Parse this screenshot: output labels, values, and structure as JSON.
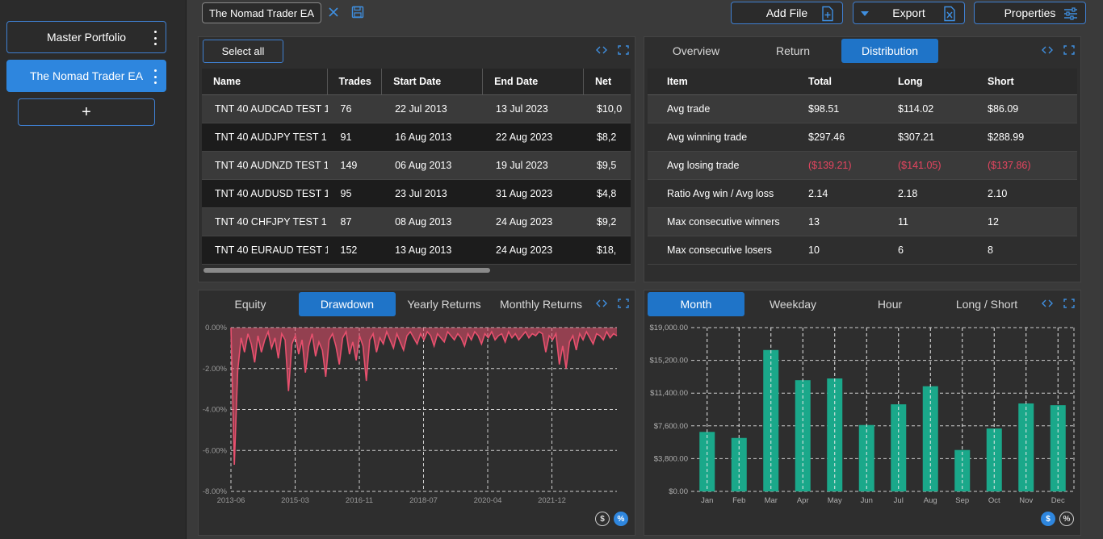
{
  "sidebar": {
    "portfolios": [
      {
        "label": "Master Portfolio",
        "active": false
      },
      {
        "label": "The Nomad Trader EA",
        "active": true
      }
    ],
    "add_label": "+"
  },
  "topbar": {
    "file_name": "The Nomad Trader EA",
    "add_file_label": "Add File",
    "export_label": "Export",
    "properties_label": "Properties"
  },
  "trades_table": {
    "select_all_label": "Select all",
    "columns": [
      "Name",
      "Trades",
      "Start Date",
      "End Date",
      "Net"
    ],
    "rows": [
      [
        "TNT 40 AUDCAD TEST 1",
        "76",
        "22 Jul 2013",
        "13 Jul 2023",
        "$10,0"
      ],
      [
        "TNT 40 AUDJPY TEST 1",
        "91",
        "16 Aug 2013",
        "22 Aug 2023",
        "$8,2"
      ],
      [
        "TNT 40 AUDNZD TEST 1",
        "149",
        "06 Aug 2013",
        "19 Jul 2023",
        "$9,5"
      ],
      [
        "TNT 40 AUDUSD TEST 1",
        "95",
        "23 Jul 2013",
        "31 Aug 2023",
        "$4,8"
      ],
      [
        "TNT 40 CHFJPY TEST 1",
        "87",
        "08 Aug 2013",
        "24 Aug 2023",
        "$9,2"
      ],
      [
        "TNT 40 EURAUD TEST 1",
        "152",
        "13 Aug 2013",
        "24 Aug 2023",
        "$18,"
      ]
    ]
  },
  "distribution": {
    "tabs": [
      "Overview",
      "Return",
      "Distribution"
    ],
    "active_tab": "Distribution",
    "columns": [
      "Item",
      "Total",
      "Long",
      "Short"
    ],
    "rows": [
      {
        "item": "Avg trade",
        "total": "$98.51",
        "long": "$114.02",
        "short": "$86.09",
        "neg": false
      },
      {
        "item": "Avg winning trade",
        "total": "$297.46",
        "long": "$307.21",
        "short": "$288.99",
        "neg": false
      },
      {
        "item": "Avg losing trade",
        "total": "($139.21)",
        "long": "($141.05)",
        "short": "($137.86)",
        "neg": true
      },
      {
        "item": "Ratio Avg win / Avg loss",
        "total": "2.14",
        "long": "2.18",
        "short": "2.10",
        "neg": false
      },
      {
        "item": "Max consecutive winners",
        "total": "13",
        "long": "11",
        "short": "12",
        "neg": false
      },
      {
        "item": "Max consecutive losers",
        "total": "10",
        "long": "6",
        "short": "8",
        "neg": false
      }
    ]
  },
  "drawdown_panel": {
    "tabs": [
      "Equity",
      "Drawdown",
      "Yearly Returns",
      "Monthly Returns"
    ],
    "active_tab": "Drawdown",
    "toggle_dollar": "$",
    "toggle_percent": "%"
  },
  "month_panel": {
    "tabs": [
      "Month",
      "Weekday",
      "Hour",
      "Long / Short"
    ],
    "active_tab": "Month",
    "toggle_dollar": "$",
    "toggle_percent": "%"
  },
  "chart_data": [
    {
      "type": "area",
      "title": "",
      "x_ticks": [
        "2013-06",
        "2015-03",
        "2016-11",
        "2018-07",
        "2020-04",
        "2021-12"
      ],
      "y_ticks": [
        "0.00%",
        "-2.00%",
        "-4.00%",
        "-6.00%",
        "-8.00%"
      ],
      "ylim": [
        -8,
        0
      ],
      "grid": true,
      "color": "#e8506e",
      "series": [
        {
          "values": [
            0,
            -6.7,
            -2.1,
            -0.5,
            -1.2,
            -0.3,
            -0.8,
            -1.7,
            -0.4,
            -1.2,
            -0.6,
            -0.2,
            -1.0,
            -0.5,
            -1.5,
            -0.3,
            -0.6,
            -3.1,
            -0.8,
            -0.4,
            -1.3,
            -0.6,
            -2.2,
            -0.9,
            -0.3,
            -1.4,
            -0.7,
            -1.1,
            -2.4,
            -0.6,
            -0.3,
            -0.9,
            -1.8,
            -0.5,
            -0.2,
            -1.3,
            -0.7,
            -1.6,
            -0.4,
            -0.9,
            -2.6,
            -0.6,
            -0.3,
            -1.2,
            -0.5,
            -0.8,
            -0.2,
            -0.6,
            -1.0,
            -0.3,
            -0.7,
            -1.1,
            -0.4,
            -0.2,
            -0.5,
            -0.8,
            -0.3,
            -0.6,
            -0.2,
            -0.4,
            -0.9,
            -0.3,
            -0.5,
            -0.7,
            -0.2,
            -0.4,
            -0.6,
            -0.3,
            -0.5,
            -0.9,
            -0.3,
            -0.6,
            -0.2,
            -0.4,
            -0.8,
            -0.3,
            -0.5,
            -0.2,
            -0.6,
            -0.4,
            -0.3,
            -0.7,
            -0.2,
            -0.5,
            -0.3,
            -0.6,
            -0.4,
            -0.2,
            -0.5,
            -0.3,
            -0.4,
            -0.2,
            -0.3,
            -1.2,
            -0.4,
            -0.6,
            -0.3,
            -1.8,
            -0.9,
            -2.0,
            -0.7,
            -0.4,
            -1.1,
            -0.3,
            -0.6,
            -0.2,
            -0.5,
            -0.8,
            -0.3,
            -0.4,
            -0.6,
            -0.2,
            -0.5,
            -0.3,
            -0.4
          ]
        }
      ]
    },
    {
      "type": "bar",
      "title": "",
      "categories": [
        "Jan",
        "Feb",
        "Mar",
        "Apr",
        "May",
        "Jun",
        "Jul",
        "Aug",
        "Sep",
        "Oct",
        "Nov",
        "Dec"
      ],
      "values": [
        6900,
        6200,
        16400,
        12900,
        13100,
        7700,
        10100,
        12200,
        4800,
        7300,
        10200,
        10000
      ],
      "y_ticks": [
        "$0.00",
        "$3,800.00",
        "$7,600.00",
        "$11,400.00",
        "$15,200.00",
        "$19,000.00"
      ],
      "ylim": [
        0,
        19000
      ],
      "grid": true,
      "color": "#1aa88a"
    }
  ]
}
